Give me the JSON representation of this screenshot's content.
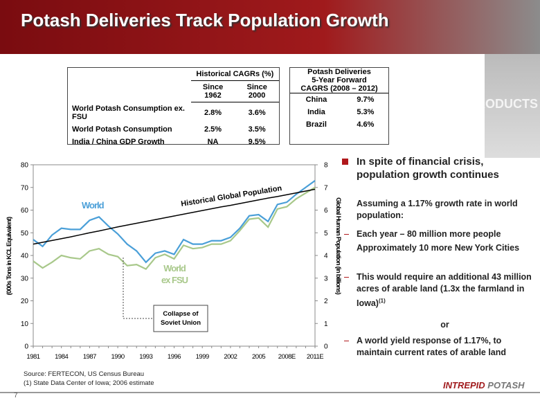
{
  "header": {
    "title": "Potash Deliveries Track Population Growth",
    "side_label": "PRODUCTS"
  },
  "table_cagr": {
    "title": "Historical CAGRs (%)",
    "columns": [
      "Since 1962",
      "Since 2000"
    ],
    "rows": [
      [
        "World Potash Consumption ex. FSU",
        "2.8%",
        "3.6%"
      ],
      [
        "World Potash Consumption",
        "2.5%",
        "3.5%"
      ],
      [
        "India / China GDP Growth",
        "NA",
        "9.5%"
      ]
    ]
  },
  "table_forward": {
    "title": [
      "Potash Deliveries",
      "5-Year Forward",
      "CAGRS (2008 – 2012)"
    ],
    "rows": [
      [
        "China",
        "9.7%"
      ],
      [
        "India",
        "5.3%"
      ],
      [
        "Brazil",
        "4.6%"
      ]
    ]
  },
  "chart_data": {
    "type": "line",
    "categories": [
      "1981",
      null,
      null,
      "1984",
      null,
      null,
      "1987",
      null,
      null,
      "1990",
      null,
      null,
      "1993",
      null,
      null,
      "1996",
      null,
      null,
      "1999",
      null,
      null,
      "2002",
      null,
      null,
      "2005",
      null,
      null,
      "2008E",
      null,
      null,
      "2011E"
    ],
    "series": [
      {
        "name": "World",
        "color": "#4a9fd8",
        "values": [
          47,
          44,
          49,
          52,
          51.5,
          51.5,
          55.5,
          57,
          53,
          49.5,
          45,
          42,
          37,
          41,
          42,
          40.5,
          47,
          45,
          45,
          46.5,
          46.5,
          48,
          52,
          57.5,
          58,
          55,
          62.5,
          63.5,
          67,
          70,
          73
        ]
      },
      {
        "name": [
          "World",
          "ex FSU"
        ],
        "color": "#a8c88a",
        "values": [
          37.5,
          34.5,
          37,
          40,
          39,
          38.5,
          42,
          43,
          40.5,
          39.5,
          35.5,
          36,
          34,
          39,
          40.5,
          38.5,
          44.5,
          43,
          43.5,
          45,
          45,
          46.5,
          51,
          56,
          56.5,
          52.5,
          60.5,
          61.5,
          65,
          67.5,
          70
        ]
      },
      {
        "name": "Historical Global Population",
        "color": "#000000",
        "axis": "y2",
        "values": [
          4.5,
          4.58,
          4.66,
          4.74,
          4.82,
          4.91,
          5.0,
          5.08,
          5.17,
          5.26,
          5.34,
          5.42,
          5.5,
          5.58,
          5.66,
          5.74,
          5.82,
          5.9,
          5.98,
          6.06,
          6.14,
          6.21,
          6.29,
          6.37,
          6.45,
          6.53,
          6.6,
          6.68,
          6.76,
          6.84,
          6.92
        ]
      }
    ],
    "ylim": [
      0,
      80
    ],
    "yticks": [
      0,
      10,
      20,
      30,
      40,
      50,
      60,
      70,
      80
    ],
    "y2lim": [
      0,
      8
    ],
    "y2ticks": [
      0,
      1,
      2,
      3,
      4,
      5,
      6,
      7,
      8
    ],
    "ylabel": "(000s Tons in KCL Equivalent)",
    "y2label": "Global Human Population (in billions)",
    "annotation": [
      "Collapse of",
      "Soviet Union"
    ]
  },
  "bullets": [
    {
      "style": "main",
      "text": "In spite of financial crisis, population growth continues"
    },
    {
      "style": "plain",
      "text": "Assuming a 1.17% growth rate in world population:"
    },
    {
      "style": "dash",
      "text": "Each year – 80 million more people"
    },
    {
      "style": "plain",
      "text": "Approximately 10 more New York Cities"
    },
    {
      "style": "dash",
      "text": "This would require an additional 43 million acres of arable land (1.3x the farmland in Iowa)",
      "sup": "(1)"
    },
    {
      "style": "center",
      "text": "or"
    },
    {
      "style": "dash",
      "text": "A world yield response of 1.17%, to maintain current rates of arable land"
    }
  ],
  "footer": {
    "source": "Source:  FERTECON, US Census Bureau",
    "note": "(1) State Data Center of Iowa; 2006 estimate",
    "page": "7",
    "logo": [
      "INTREPID",
      "POTASH"
    ]
  }
}
